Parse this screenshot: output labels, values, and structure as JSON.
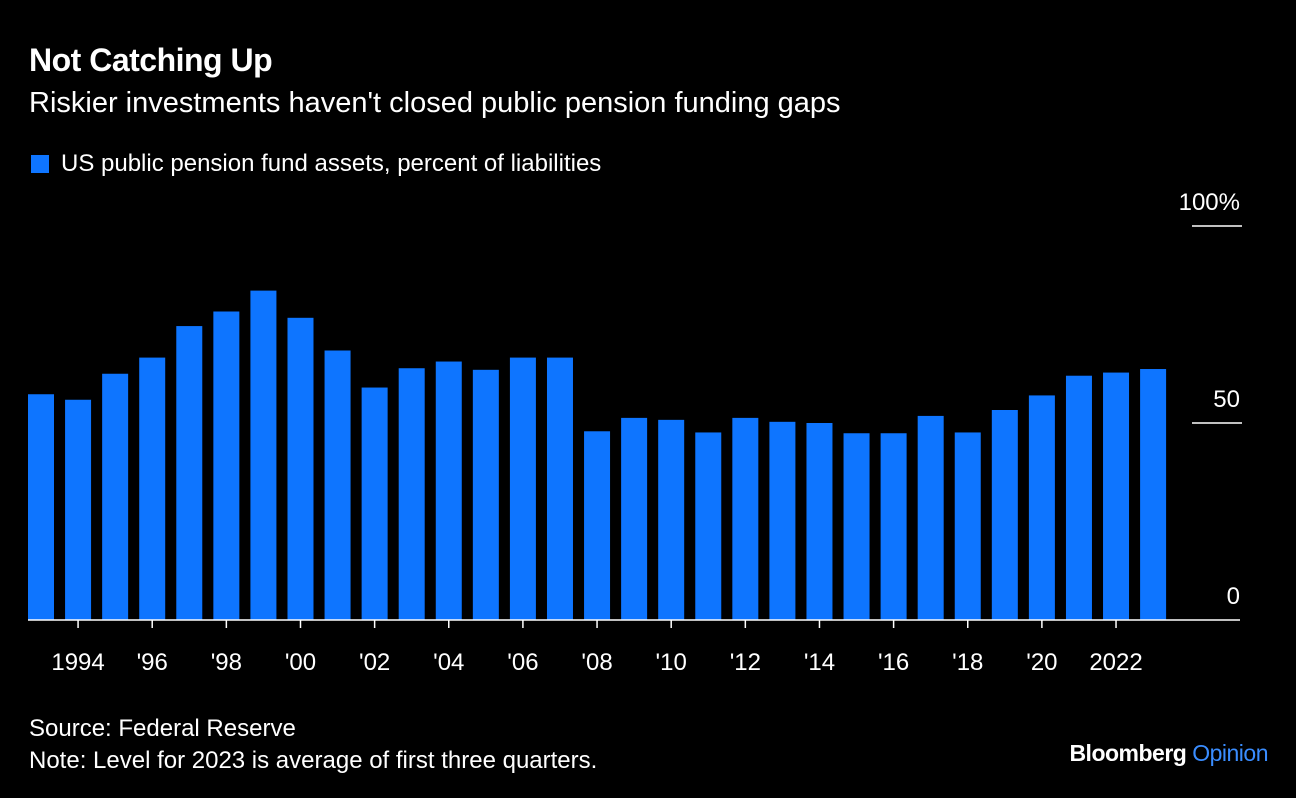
{
  "colors": {
    "background": "#000000",
    "text": "#ffffff",
    "bar": "#0e75ff",
    "axis": "#ffffff",
    "opinion": "#3a8dff"
  },
  "header": {
    "title": "Not Catching Up",
    "subtitle": "Riskier investments haven't closed public pension funding gaps"
  },
  "footer": {
    "source": "Source: Federal Reserve",
    "note": "Note: Level for 2023 is average of first three quarters."
  },
  "brand": {
    "name": "Bloomberg",
    "section": "Opinion"
  },
  "chart_data": {
    "type": "bar",
    "title": "Not Catching Up",
    "subtitle": "Riskier investments haven't closed public pension funding gaps",
    "series": [
      {
        "name": "US public pension fund assets, percent of liabilities",
        "x": [
          1993,
          1994,
          1995,
          1996,
          1997,
          1998,
          1999,
          2000,
          2001,
          2002,
          2003,
          2004,
          2005,
          2006,
          2007,
          2008,
          2009,
          2010,
          2011,
          2012,
          2013,
          2014,
          2015,
          2016,
          2017,
          2018,
          2019,
          2020,
          2021,
          2022,
          2023
        ],
        "values": [
          57.3,
          55.9,
          62.5,
          66.6,
          74.6,
          78.3,
          83.6,
          76.7,
          68.4,
          59.0,
          63.9,
          65.6,
          63.5,
          66.6,
          66.6,
          47.9,
          51.3,
          50.8,
          47.6,
          51.3,
          50.3,
          50.0,
          47.4,
          47.4,
          51.8,
          47.6,
          53.3,
          57.0,
          62.0,
          62.8,
          63.7
        ]
      }
    ],
    "ylim": [
      0,
      100
    ],
    "yticks": [
      0,
      50,
      100
    ],
    "ytick_labels": [
      "0",
      "50",
      "100%"
    ],
    "xticks": [
      1994,
      1996,
      1998,
      2000,
      2002,
      2004,
      2006,
      2008,
      2010,
      2012,
      2014,
      2016,
      2018,
      2020,
      2022
    ],
    "xtick_labels": [
      "1994",
      "'96",
      "'98",
      "'00",
      "'02",
      "'04",
      "'06",
      "'08",
      "'10",
      "'12",
      "'14",
      "'16",
      "'18",
      "'20",
      "2022"
    ],
    "xlabel": "",
    "ylabel": "",
    "grid": false,
    "legend_position": "top-left"
  }
}
